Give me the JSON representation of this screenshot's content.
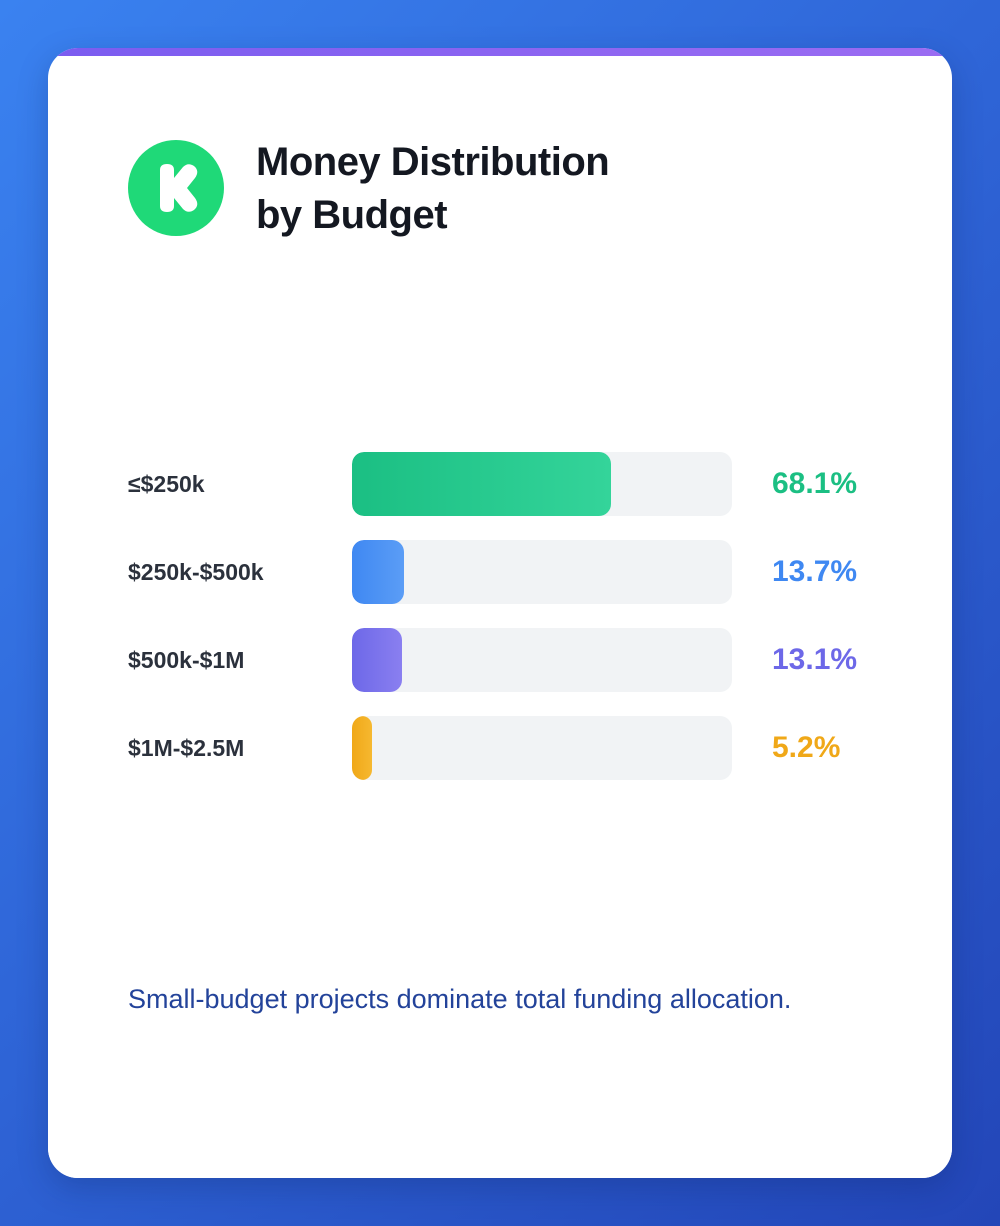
{
  "logo": {
    "icon": "kickstarter-k-icon",
    "color": "#1fd978"
  },
  "header": {
    "title_line1": "Money Distribution",
    "title_line2": "by Budget"
  },
  "chart_data": {
    "type": "bar",
    "orientation": "horizontal",
    "title": "Money Distribution by Budget",
    "xlabel": "",
    "ylabel": "",
    "xlim": [
      0,
      100
    ],
    "unit": "%",
    "grid": false,
    "categories": [
      "≤$250k",
      "$250k-$500k",
      "$500k-$1M",
      "$1M-$2.5M"
    ],
    "values": [
      68.1,
      13.7,
      13.1,
      5.2
    ],
    "value_labels": [
      "68.1%",
      "13.7%",
      "13.1%",
      "5.2%"
    ],
    "colors": [
      "#1bbf83",
      "#3f88f2",
      "#6d68e8",
      "#f0a818"
    ],
    "gradient_end_colors": [
      "#34d49a",
      "#5b9df6",
      "#8a7ff0",
      "#f6b830"
    ],
    "track_color": "#f1f3f5"
  },
  "footnote": "Small-budget projects dominate total funding allocation."
}
